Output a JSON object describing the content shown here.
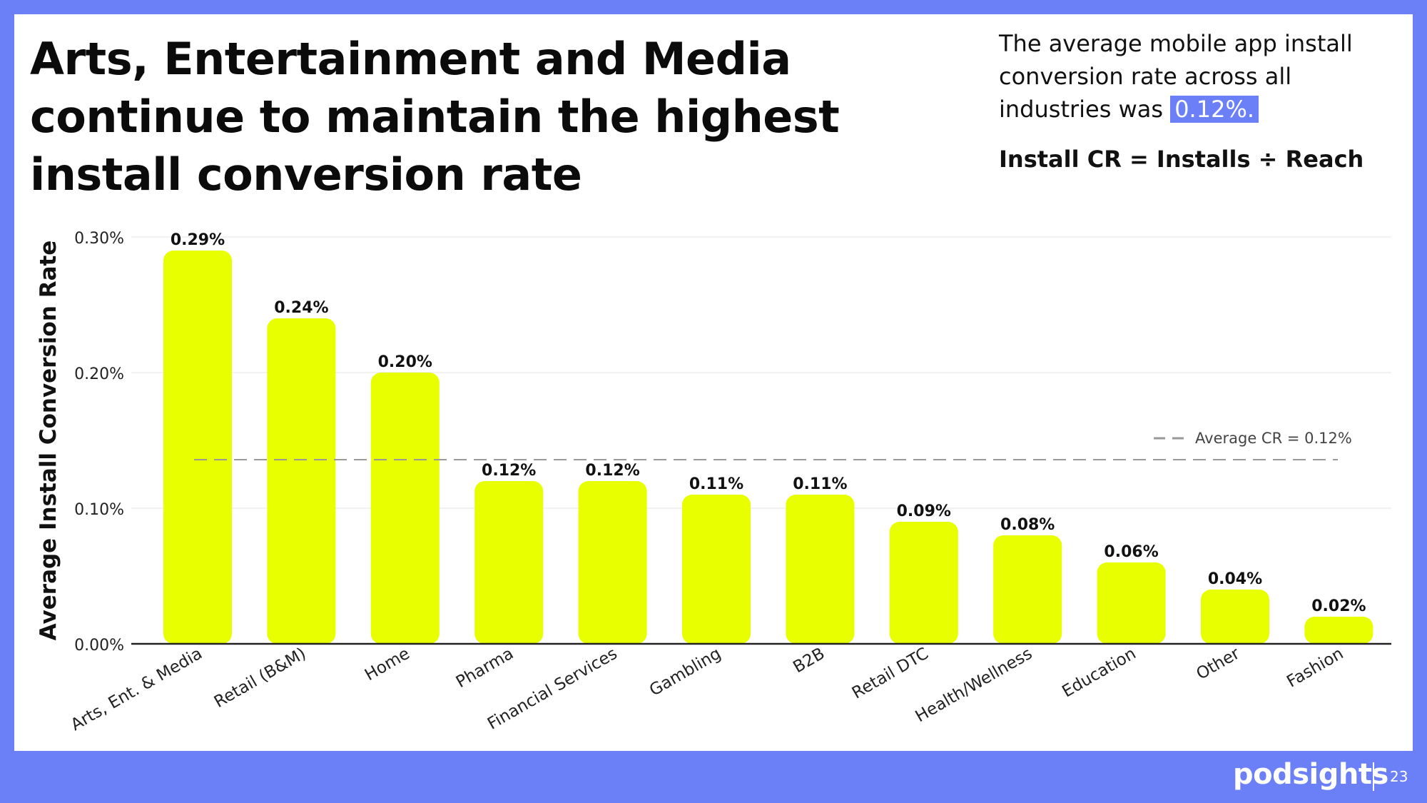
{
  "slide": {
    "title": "Arts, Entertainment and Media continue to maintain the highest install conversion rate",
    "note_prefix": "The average mobile app install conversion rate across all industries was",
    "note_highlight": "0.12%.",
    "formula": "Install CR = Installs ÷ Reach",
    "brand": "podsights",
    "page_number": "23"
  },
  "colors": {
    "background": "#6b7ff7",
    "bar": "#e8ff00",
    "avg_line": "#999999",
    "axis": "#222222",
    "grid": "#eeeeee"
  },
  "chart_data": {
    "type": "bar",
    "title": "",
    "xlabel": "",
    "ylabel": "Average Install Conversion Rate",
    "categories": [
      "Arts, Ent. & Media",
      "Retail (B&M)",
      "Home",
      "Pharma",
      "Financial Services",
      "Gambling",
      "B2B",
      "Retail DTC",
      "Health/Wellness",
      "Education",
      "Other",
      "Fashion"
    ],
    "values": [
      0.29,
      0.24,
      0.2,
      0.12,
      0.12,
      0.11,
      0.11,
      0.09,
      0.08,
      0.06,
      0.04,
      0.02
    ],
    "value_labels": [
      "0.29%",
      "0.24%",
      "0.20%",
      "0.12%",
      "0.12%",
      "0.11%",
      "0.11%",
      "0.09%",
      "0.08%",
      "0.06%",
      "0.04%",
      "0.02%"
    ],
    "yticks": [
      0,
      0.1,
      0.2,
      0.3
    ],
    "ytick_labels": [
      "0.00%",
      "0.10%",
      "0.20%",
      "0.30%"
    ],
    "ylim": [
      0,
      0.3
    ],
    "grid": true,
    "reference_line": {
      "value": 0.12,
      "style": "dashed",
      "label": "Average CR = 0.12%"
    },
    "legend": "right"
  }
}
